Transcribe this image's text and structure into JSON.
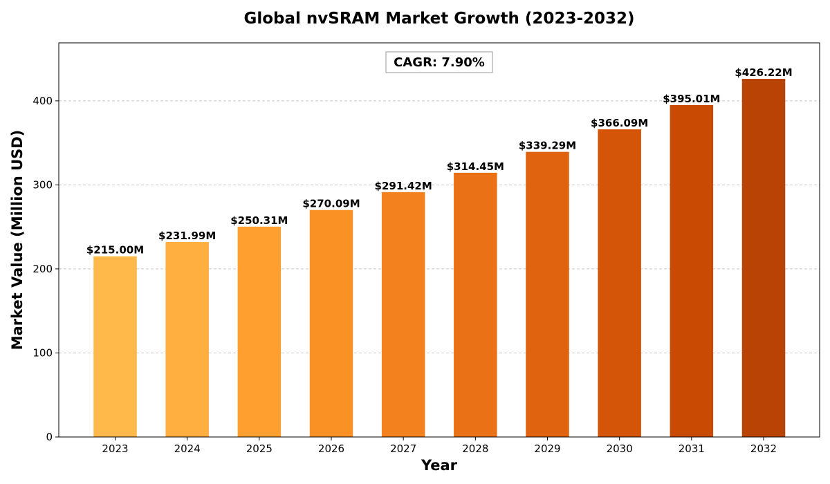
{
  "chart_data": {
    "type": "bar",
    "title": "Global nvSRAM Market Growth (2023-2032)",
    "xlabel": "Year",
    "ylabel": "Market Value (Million USD)",
    "categories": [
      "2023",
      "2024",
      "2025",
      "2026",
      "2027",
      "2028",
      "2029",
      "2030",
      "2031",
      "2032"
    ],
    "values": [
      215.0,
      231.99,
      250.31,
      270.09,
      291.42,
      314.45,
      339.29,
      366.09,
      395.01,
      426.22
    ],
    "data_labels": [
      "$215.00M",
      "$231.99M",
      "$250.31M",
      "$270.09M",
      "$291.42M",
      "$314.45M",
      "$339.29M",
      "$366.09M",
      "$395.01M",
      "$426.22M"
    ],
    "colors": [
      "#FFB84A",
      "#FFAE3F",
      "#FF9F30",
      "#F99124",
      "#F3821E",
      "#EB7117",
      "#E0630F",
      "#D45508",
      "#C94B03",
      "#B84304"
    ],
    "ylim": [
      0,
      469
    ],
    "yticks": [
      0,
      100,
      200,
      300,
      400
    ],
    "grid": "y-dashed",
    "annotation": "CAGR: 7.90%"
  }
}
